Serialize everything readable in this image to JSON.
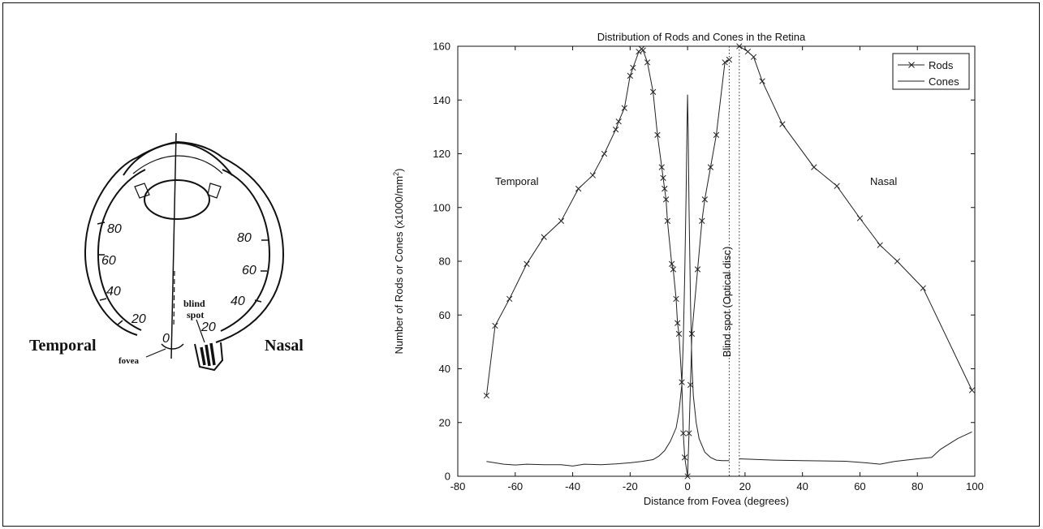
{
  "eye_diagram": {
    "left_side_label": "Temporal",
    "right_side_label": "Nasal",
    "fovea_label": "fovea",
    "blind_spot_label_line1": "blind",
    "blind_spot_label_line2": "spot",
    "temporal_angle_labels": [
      "80",
      "60",
      "40",
      "20",
      "0"
    ],
    "nasal_angle_labels": [
      "80",
      "60",
      "40",
      "20"
    ]
  },
  "chart_data": {
    "type": "line",
    "title": "Distribution of Rods and Cones in the Retina",
    "xlabel": "Distance from Fovea (degrees)",
    "ylabel_main": "Number of Rods or Cones (x1000/mm",
    "ylabel_sup": "2",
    "ylabel_end": ")",
    "xlim": [
      -80,
      100
    ],
    "ylim": [
      0,
      160
    ],
    "x_ticks": [
      -80,
      -60,
      -40,
      -20,
      0,
      20,
      40,
      60,
      80,
      100
    ],
    "y_ticks": [
      0,
      20,
      40,
      60,
      80,
      100,
      120,
      140,
      160
    ],
    "grid": false,
    "legend_position": "top-right",
    "annotations": {
      "temporal": "Temporal",
      "nasal": "Nasal",
      "blind_spot": "Blind spot (Optical disc)"
    },
    "blind_spot_range": [
      14.5,
      18
    ],
    "series": [
      {
        "name": "Rods",
        "marker": "x",
        "segments": [
          [
            [
              -70,
              30
            ],
            [
              -67,
              56
            ],
            [
              -62,
              66
            ],
            [
              -56,
              79
            ],
            [
              -50,
              89
            ],
            [
              -44,
              95
            ],
            [
              -38,
              107
            ],
            [
              -33,
              112
            ],
            [
              -29,
              120
            ],
            [
              -25,
              129
            ],
            [
              -24,
              132
            ],
            [
              -22,
              137
            ],
            [
              -20,
              149
            ],
            [
              -19,
              152
            ],
            [
              -17,
              158
            ],
            [
              -16,
              159
            ],
            [
              -15.5,
              158.5
            ],
            [
              -14,
              154
            ],
            [
              -12,
              143
            ],
            [
              -10.5,
              127
            ],
            [
              -9,
              115
            ],
            [
              -8.5,
              111
            ],
            [
              -8,
              107
            ],
            [
              -7.5,
              103
            ],
            [
              -7,
              95
            ],
            [
              -5.5,
              79
            ],
            [
              -5,
              77
            ],
            [
              -4,
              66
            ],
            [
              -3.5,
              57
            ],
            [
              -3,
              53
            ],
            [
              -2,
              35
            ],
            [
              -1.5,
              16
            ],
            [
              -1,
              7
            ],
            [
              0,
              0
            ],
            [
              0.5,
              16
            ],
            [
              1,
              34
            ],
            [
              1.5,
              53
            ],
            [
              3.5,
              77
            ],
            [
              5,
              95
            ],
            [
              6,
              103
            ],
            [
              8,
              115
            ],
            [
              10,
              127
            ],
            [
              13,
              154
            ],
            [
              14.5,
              155
            ]
          ],
          [
            [
              18,
              160
            ],
            [
              21,
              158
            ],
            [
              23,
              156
            ],
            [
              26,
              147
            ],
            [
              33,
              131
            ],
            [
              44,
              115
            ],
            [
              52,
              108
            ],
            [
              60,
              96
            ],
            [
              67,
              86
            ],
            [
              73,
              80
            ],
            [
              82,
              70
            ],
            [
              99,
              32
            ]
          ]
        ]
      },
      {
        "name": "Cones",
        "marker": "none",
        "segments": [
          [
            [
              -70,
              5.5
            ],
            [
              -64,
              4.5
            ],
            [
              -60,
              4.2
            ],
            [
              -56,
              4.5
            ],
            [
              -50,
              4.3
            ],
            [
              -44,
              4.3
            ],
            [
              -40,
              3.8
            ],
            [
              -36,
              4.5
            ],
            [
              -30,
              4.3
            ],
            [
              -25,
              4.6
            ],
            [
              -20,
              5.0
            ],
            [
              -16,
              5.5
            ],
            [
              -12,
              6.2
            ],
            [
              -10,
              7.5
            ],
            [
              -8,
              9.5
            ],
            [
              -6,
              13
            ],
            [
              -4,
              18
            ],
            [
              -3,
              24
            ],
            [
              -2,
              34
            ],
            [
              -1.5,
              50
            ],
            [
              -1,
              75
            ],
            [
              -0.5,
              105
            ],
            [
              -0.2,
              130
            ],
            [
              0,
              142
            ],
            [
              0.2,
              130
            ],
            [
              0.5,
              100
            ],
            [
              1,
              65
            ],
            [
              1.5,
              42
            ],
            [
              2,
              30
            ],
            [
              3,
              20
            ],
            [
              4,
              14
            ],
            [
              6,
              9
            ],
            [
              8,
              7
            ],
            [
              10,
              6
            ],
            [
              12,
              5.8
            ],
            [
              14.5,
              5.8
            ]
          ],
          [
            [
              18,
              6.5
            ],
            [
              30,
              6.0
            ],
            [
              40,
              5.8
            ],
            [
              55,
              5.6
            ],
            [
              62,
              5.0
            ],
            [
              67,
              4.5
            ],
            [
              72,
              5.5
            ],
            [
              80,
              6.5
            ],
            [
              85,
              7.0
            ],
            [
              88,
              10
            ],
            [
              94,
              14
            ],
            [
              99,
              16.5
            ]
          ]
        ]
      }
    ]
  }
}
